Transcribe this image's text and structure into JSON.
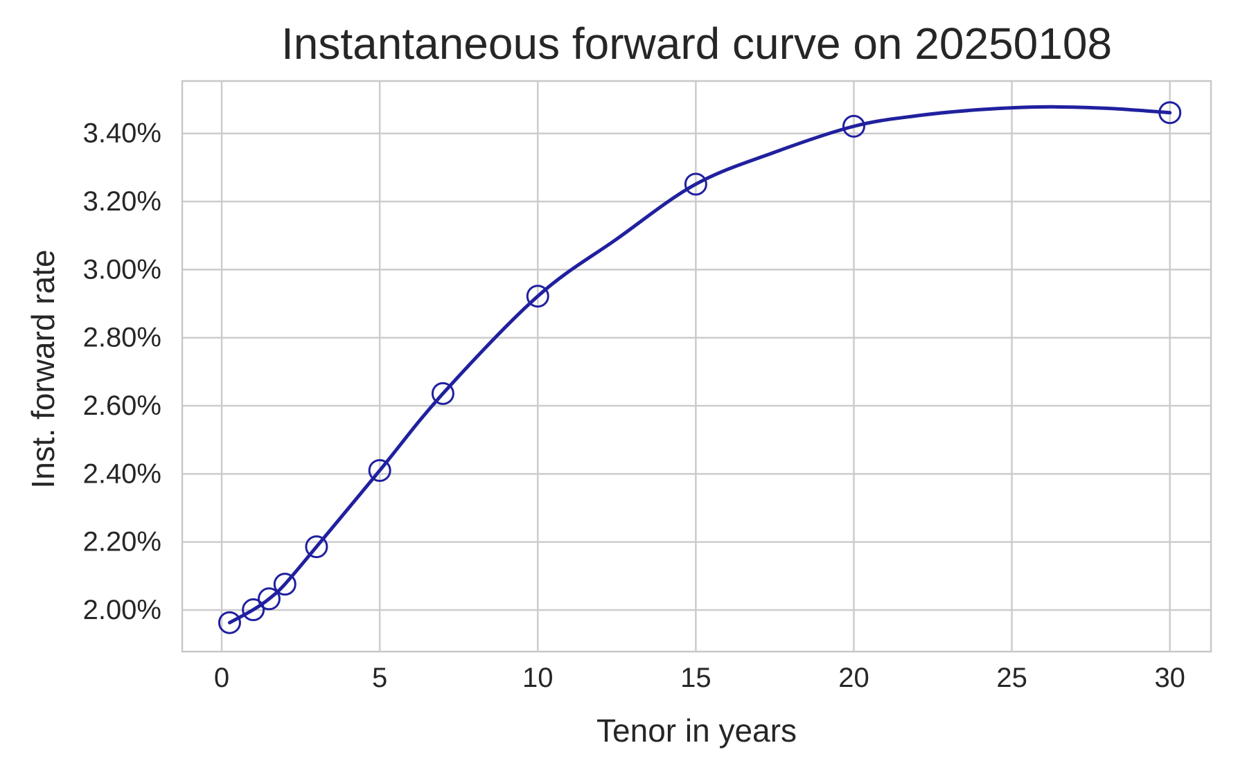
{
  "chart_data": {
    "type": "line",
    "title": "Instantaneous forward curve on 20250108",
    "xlabel": "Tenor in years",
    "ylabel": "Inst. forward rate",
    "x_tick_values": [
      0,
      5,
      10,
      15,
      20,
      25,
      30
    ],
    "y_tick_values": [
      2.0,
      2.2,
      2.4,
      2.6,
      2.8,
      3.0,
      3.2,
      3.4
    ],
    "y_tick_labels": [
      "2.00%",
      "2.20%",
      "2.40%",
      "2.60%",
      "2.80%",
      "3.00%",
      "3.20%",
      "3.40%"
    ],
    "xlim": [
      -1.25,
      31.3
    ],
    "ylim_percent": [
      1.878,
      3.554
    ],
    "grid": true,
    "legend": "none",
    "colors": {
      "line": "#20209f",
      "grid": "#cccccc",
      "spine": "#c8c8c8",
      "text": "#262626"
    },
    "series": [
      {
        "name": "instantaneous-forward-rate",
        "marker": "open-circle",
        "x_years": [
          0.25,
          1,
          1.5,
          2,
          3,
          5,
          7,
          10,
          15,
          20,
          30
        ],
        "y_percent": [
          1.963,
          2.001,
          2.033,
          2.076,
          2.186,
          2.41,
          2.636,
          2.922,
          3.251,
          3.421,
          3.461
        ]
      }
    ],
    "curve_samples": {
      "note": "fitted smooth curve read off the plot, including hump near 26y",
      "x_years": [
        0.25,
        1,
        1.5,
        2,
        3,
        5,
        7,
        10,
        12.5,
        15,
        17.5,
        20,
        22,
        24,
        26,
        28,
        30
      ],
      "y_percent": [
        1.963,
        2.001,
        2.033,
        2.076,
        2.186,
        2.41,
        2.636,
        2.922,
        3.09,
        3.251,
        3.345,
        3.421,
        3.452,
        3.47,
        3.478,
        3.474,
        3.461
      ]
    }
  }
}
